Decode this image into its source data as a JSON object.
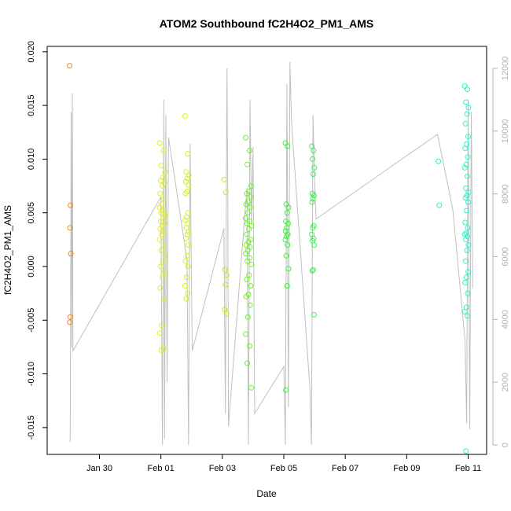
{
  "chart_data": {
    "type": "scatter",
    "title": "ATOM2 Southbound fC2H4O2_PM1_AMS",
    "xlabel": "Date",
    "ylabel": "fC2H4O2_PM1_AMS",
    "x_ticks": [
      "Jan 30",
      "Feb 01",
      "Feb 03",
      "Feb 05",
      "Feb 07",
      "Feb 09",
      "Feb 11"
    ],
    "x_tick_days": [
      30,
      32,
      34,
      36,
      38,
      40,
      42
    ],
    "xlim_days": [
      28.3,
      42.6
    ],
    "ylim": [
      -0.0175,
      0.0205
    ],
    "y_ticks": [
      "-0.015",
      "-0.010",
      "-0.005",
      "0.000",
      "0.005",
      "0.010",
      "0.015",
      "0.020"
    ],
    "y_tick_values": [
      -0.015,
      -0.01,
      -0.005,
      0.0,
      0.005,
      0.01,
      0.015,
      0.02
    ],
    "y2lim": [
      -300,
      12700
    ],
    "y2_ticks": [
      "0",
      "2000",
      "4000",
      "6000",
      "8000",
      "10000",
      "12000"
    ],
    "y2_tick_values": [
      0,
      2000,
      4000,
      6000,
      8000,
      10000,
      12000
    ],
    "grid": false,
    "colors": {
      "line": "#c0c0c0",
      "axis_right": "#b0b0b0",
      "gradient_start": "#f08a20",
      "gradient_mid": "#e4f020",
      "gradient_mid2": "#40ee40",
      "gradient_end": "#30f0c8"
    },
    "point_groups": [
      {
        "center": 29.05,
        "spread": 0.02,
        "color": "#f08a20",
        "y": [
          0.0187,
          0.0057,
          0.0036,
          0.0012,
          -0.0047,
          -0.0052
        ]
      },
      {
        "center": 32.05,
        "spread": 0.09,
        "color": "#dff020",
        "y": [
          0.0115,
          0.0108,
          0.0094,
          0.0088,
          0.0083,
          0.008,
          0.0078,
          0.0075,
          0.0068,
          0.0063,
          0.0058,
          0.0055,
          0.0052,
          0.005,
          0.0047,
          0.0045,
          0.0042,
          0.004,
          0.0038,
          0.0035,
          0.0032,
          0.003,
          0.0025,
          0.002,
          0.0015,
          0.001,
          0.0005,
          0.0,
          -0.0005,
          -0.001,
          -0.002,
          -0.003,
          -0.0055,
          -0.0062,
          -0.0076,
          -0.0078
        ]
      },
      {
        "center": 32.85,
        "spread": 0.06,
        "color": "#d4f020",
        "y": [
          0.014,
          0.0105,
          0.0088,
          0.0085,
          0.0082,
          0.0079,
          0.0076,
          0.007,
          0.0068,
          0.005,
          0.0046,
          0.0043,
          0.004,
          0.0036,
          0.0032,
          0.003,
          0.0026,
          0.002,
          0.001,
          0.0005,
          0.0,
          -0.001,
          -0.0018,
          -0.0025,
          -0.003
        ]
      },
      {
        "center": 34.1,
        "spread": 0.04,
        "color": "#b4f020",
        "y": [
          0.0081,
          0.0069,
          -0.0003,
          -0.0008,
          -0.0017,
          -0.004,
          -0.0044
        ]
      },
      {
        "center": 34.85,
        "spread": 0.09,
        "color": "#74ee30",
        "y": [
          0.012,
          0.0108,
          0.0095,
          0.0075,
          0.007,
          0.0068,
          0.0065,
          0.006,
          0.0058,
          0.0055,
          0.005,
          0.0045,
          0.0042,
          0.004,
          0.0038,
          0.0035,
          0.003,
          0.0025,
          0.0023,
          0.002,
          0.0018,
          0.0015,
          0.0012,
          0.0008,
          0.0005,
          0.0002,
          -0.0008,
          -0.0012,
          -0.0018,
          -0.0026,
          -0.0028,
          -0.0036,
          -0.0047,
          -0.0063,
          -0.0074,
          -0.009,
          -0.0113
        ]
      },
      {
        "center": 36.1,
        "spread": 0.05,
        "color": "#40ee40",
        "y": [
          0.0115,
          0.0112,
          0.0058,
          0.0055,
          0.005,
          0.0042,
          0.004,
          0.0036,
          0.0033,
          0.003,
          0.0028,
          0.0025,
          0.002,
          0.001,
          -0.0002,
          -0.0018,
          -0.0115
        ]
      },
      {
        "center": 36.95,
        "spread": 0.04,
        "color": "#40ee58",
        "y": [
          0.0112,
          0.0108,
          0.01,
          0.0092,
          0.0086,
          0.0068,
          0.0066,
          0.0063,
          0.006,
          0.0038,
          0.0036,
          0.003,
          0.0026,
          0.0024,
          0.002,
          -0.0003,
          -0.0004,
          -0.0045
        ]
      },
      {
        "center": 41.05,
        "spread": 0.02,
        "color": "#30f0b0",
        "y": [
          0.0098,
          0.0057
        ]
      },
      {
        "center": 41.95,
        "spread": 0.06,
        "color": "#30f0c8",
        "y": [
          0.0168,
          0.0165,
          0.0153,
          0.0148,
          0.0142,
          0.0133,
          0.0121,
          0.0114,
          0.011,
          0.0102,
          0.0095,
          0.0092,
          0.0084,
          0.0073,
          0.0069,
          0.0066,
          0.0064,
          0.006,
          0.0052,
          0.0041,
          0.0036,
          0.0031,
          0.003,
          0.0028,
          0.0025,
          0.002,
          0.0015,
          0.0005,
          -0.0005,
          -0.001,
          -0.0015,
          -0.0025,
          -0.0038,
          -0.0042,
          -0.0046,
          -0.0172
        ]
      }
    ],
    "line_series": {
      "axis": "y2",
      "x_days": [
        29.05,
        29.08,
        29.1,
        29.12,
        29.14,
        32.0,
        32.05,
        32.1,
        32.12,
        32.16,
        32.2,
        32.25,
        32.85,
        32.9,
        32.95,
        33.02,
        34.05,
        34.1,
        34.15,
        34.18,
        34.2,
        34.8,
        34.85,
        34.9,
        34.95,
        35.0,
        35.05,
        36.0,
        36.05,
        36.1,
        36.15,
        36.2,
        36.25,
        36.85,
        36.9,
        36.95,
        37.0,
        37.05,
        41.0,
        41.5,
        41.9,
        41.95,
        42.0,
        42.05,
        42.1,
        42.15
      ],
      "y": [
        100,
        10600,
        3100,
        11200,
        3000,
        7900,
        0,
        11000,
        200,
        10500,
        2000,
        9800,
        5900,
        0,
        9600,
        3000,
        6900,
        1000,
        12000,
        7500,
        600,
        8200,
        0,
        11000,
        7000,
        9500,
        1000,
        2500,
        0,
        11500,
        1200,
        12200,
        10300,
        1800,
        0,
        10500,
        8500,
        7200,
        9900,
        7500,
        3300,
        700,
        11000,
        500,
        10600,
        5000
      ]
    }
  }
}
